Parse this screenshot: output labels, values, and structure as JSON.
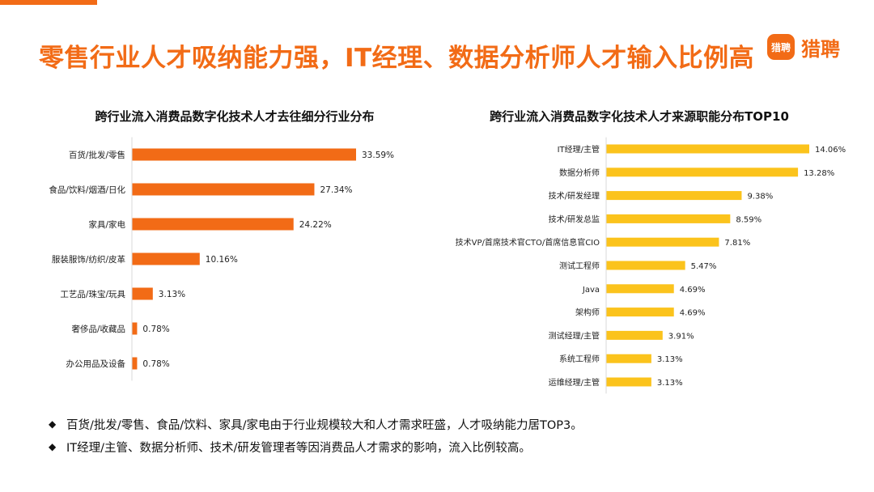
{
  "slide": {
    "title": "零售行业人才吸纳能力强，IT经理、数据分析师人才输入比例高",
    "logo_icon_text": "猎聘",
    "logo_text": "猎聘",
    "accent_color": "#f26b16"
  },
  "chart_data": [
    {
      "type": "bar",
      "orientation": "horizontal",
      "title": "跨行业流入消费品数字化技术人才去往细分行业分布",
      "categories": [
        "百货/批发/零售",
        "食品/饮料/烟酒/日化",
        "家具/家电",
        "服装服饰/纺织/皮革",
        "工艺品/珠宝/玩具",
        "奢侈品/收藏品",
        "办公用品及设备"
      ],
      "values": [
        33.59,
        27.34,
        24.22,
        10.16,
        3.13,
        0.78,
        0.78
      ],
      "value_labels": [
        "33.59%",
        "27.34%",
        "24.22%",
        "10.16%",
        "3.13%",
        "0.78%",
        "0.78%"
      ],
      "unit": "%",
      "xlim": [
        0,
        33.59
      ],
      "grid": false,
      "bar_color": "#f26b16"
    },
    {
      "type": "bar",
      "orientation": "horizontal",
      "title": "跨行业流入消费品数字化技术人才来源职能分布TOP10",
      "categories": [
        "IT经理/主管",
        "数据分析师",
        "技术/研发经理",
        "技术/研发总监",
        "技术VP/首席技术官CTO/首席信息官CIO",
        "测试工程师",
        "Java",
        "架构师",
        "测试经理/主管",
        "系统工程师",
        "运维经理/主管"
      ],
      "values": [
        14.06,
        13.28,
        9.38,
        8.59,
        7.81,
        5.47,
        4.69,
        4.69,
        3.91,
        3.13,
        3.13
      ],
      "value_labels": [
        "14.06%",
        "13.28%",
        "9.38%",
        "8.59%",
        "7.81%",
        "5.47%",
        "4.69%",
        "4.69%",
        "3.91%",
        "3.13%",
        "3.13%"
      ],
      "unit": "%",
      "xlim": [
        0,
        14.06
      ],
      "grid": false,
      "bar_color": "#fbc31c"
    }
  ],
  "notes": [
    "百货/批发/零售、食品/饮料、家具/家电由于行业规模较大和人才需求旺盛，人才吸纳能力居TOP3。",
    "IT经理/主管、数据分析师、技术/研发管理者等因消费品人才需求的影响，流入比例较高。"
  ],
  "note_bullet": "◆"
}
